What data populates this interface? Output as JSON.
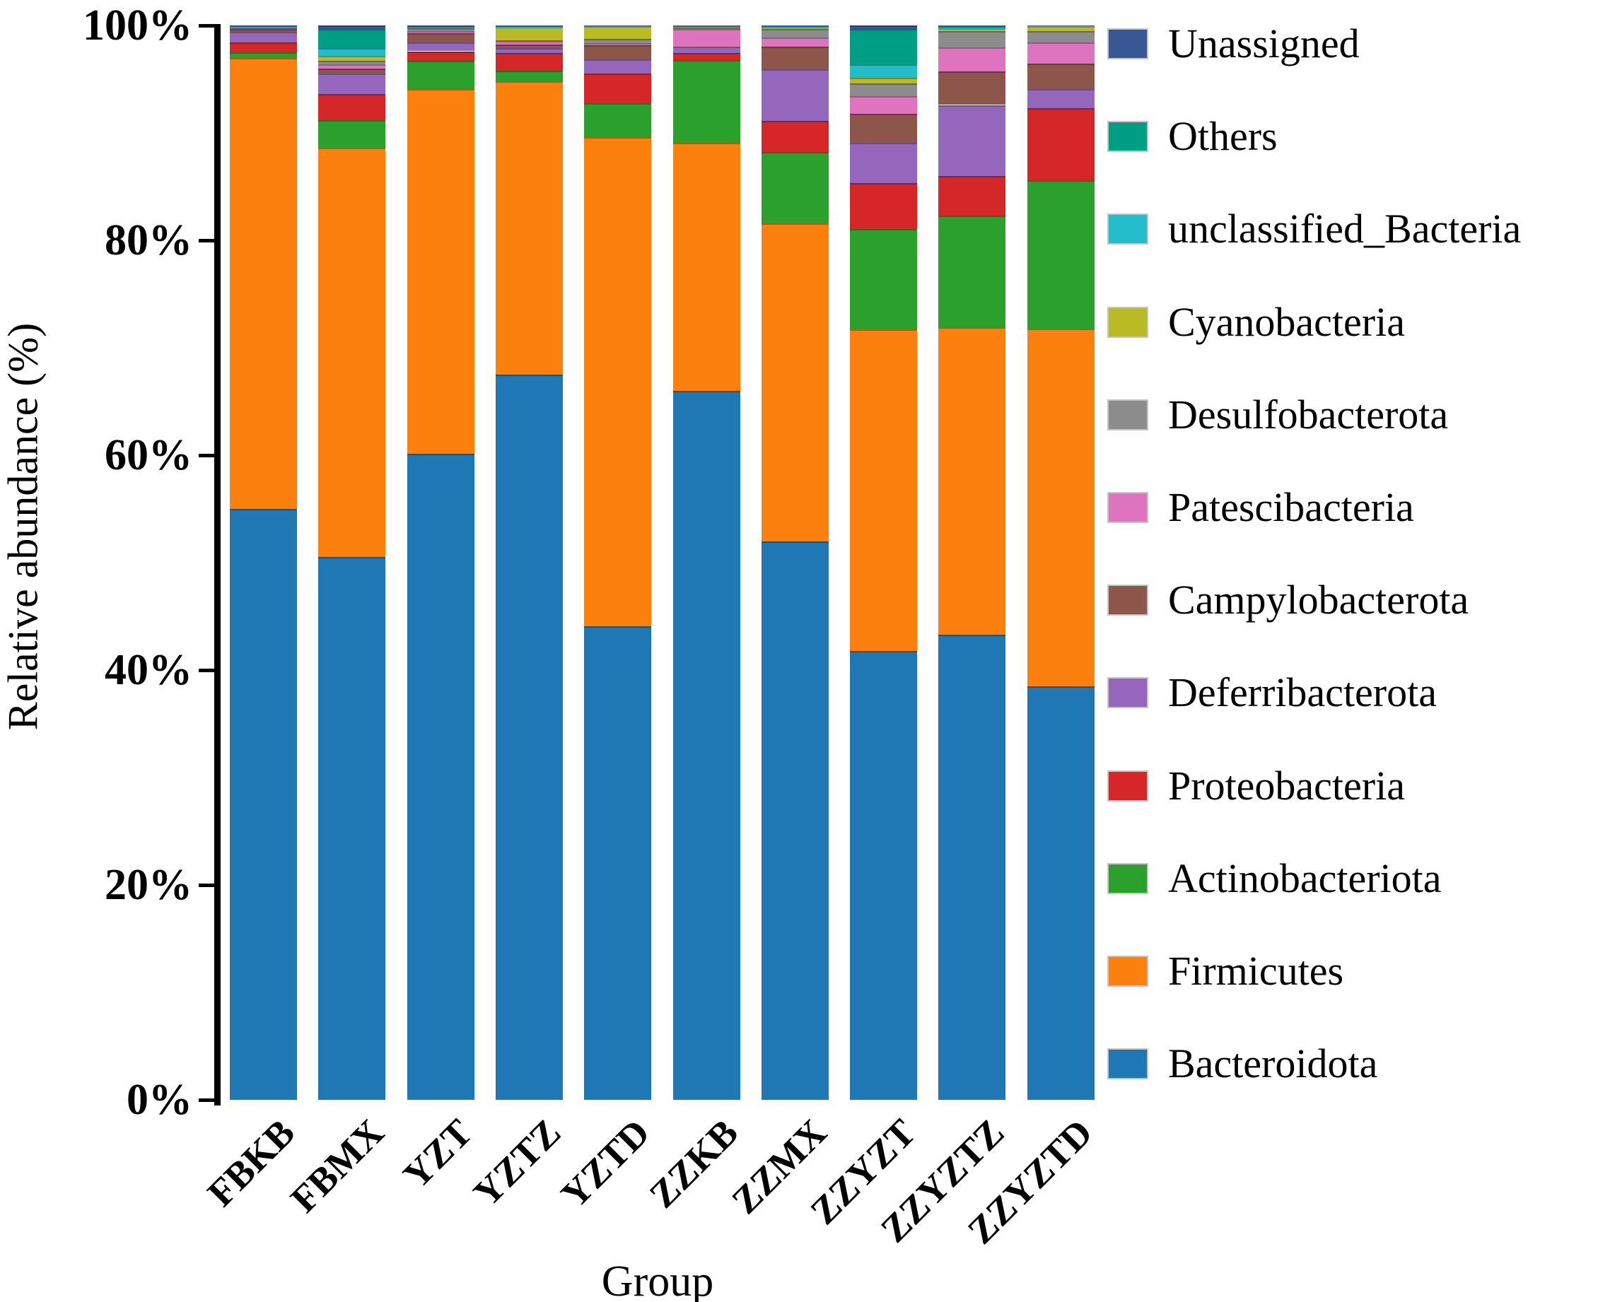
{
  "figure": {
    "y_axis_title": "Relative abundance (%)",
    "x_axis_title": "Group"
  },
  "chart_data": {
    "type": "bar",
    "stacked": true,
    "orientation": "vertical",
    "xlabel": "Group",
    "ylabel": "Relative abundance (%)",
    "ylim": [
      0,
      100
    ],
    "y_tick_labels": [
      "0%",
      "20%",
      "40%",
      "60%",
      "80%",
      "100%"
    ],
    "y_tick_values": [
      0,
      20,
      40,
      60,
      80,
      100
    ],
    "grid": false,
    "legend_position": "right",
    "legend_order_top_to_bottom": [
      "Unassigned",
      "Others",
      "unclassified_Bacteria",
      "Cyanobacteria",
      "Desulfobacterota",
      "Patescibacteria",
      "Campylobacterota",
      "Deferribacterota",
      "Proteobacteria",
      "Actinobacteriota",
      "Firmicutes",
      "Bacteroidota"
    ],
    "categories": [
      "FBKB",
      "FBMX",
      "YZT",
      "YZTZ",
      "YZTD",
      "ZZKB",
      "ZZMX",
      "ZZYZT",
      "ZZYZTZ",
      "ZZYZTD"
    ],
    "series": [
      {
        "name": "Bacteroidota",
        "color": "#1F77B4",
        "values": [
          55.0,
          50.5,
          60.1,
          67.5,
          44.1,
          66.0,
          52.0,
          41.8,
          43.3,
          38.5
        ]
      },
      {
        "name": "Firmicutes",
        "color": "#FC800E",
        "values": [
          42.0,
          38.1,
          34.0,
          27.3,
          45.5,
          23.1,
          29.6,
          29.9,
          28.6,
          33.3
        ]
      },
      {
        "name": "Actinobacteriota",
        "color": "#2CA02C",
        "values": [
          0.5,
          2.6,
          2.6,
          1.0,
          3.15,
          7.7,
          6.6,
          9.35,
          10.4,
          13.8
        ]
      },
      {
        "name": "Proteobacteria",
        "color": "#D62728",
        "values": [
          0.9,
          2.4,
          0.9,
          1.65,
          2.8,
          0.65,
          2.9,
          4.3,
          3.7,
          6.7
        ]
      },
      {
        "name": "Deferribacterota",
        "color": "#9467BD",
        "values": [
          1.0,
          1.9,
          0.8,
          0.45,
          1.3,
          0.55,
          4.85,
          3.75,
          6.6,
          1.75
        ]
      },
      {
        "name": "Campylobacterota",
        "color": "#8C564B",
        "values": [
          0.3,
          0.5,
          0.9,
          0.35,
          1.3,
          0.05,
          2.05,
          2.65,
          3.1,
          2.4
        ]
      },
      {
        "name": "Patescibacteria",
        "color": "#DE74C0",
        "values": [
          0.05,
          0.4,
          0.2,
          0.3,
          0.2,
          1.65,
          0.9,
          1.7,
          2.25,
          2.0
        ]
      },
      {
        "name": "Desulfobacterota",
        "color": "#8C8C8C",
        "values": [
          0.05,
          0.3,
          0.25,
          0.1,
          0.4,
          0.05,
          0.75,
          1.15,
          1.5,
          1.05
        ]
      },
      {
        "name": "Cyanobacteria",
        "color": "#B9BA24",
        "values": [
          0.08,
          0.5,
          0.05,
          1.2,
          1.2,
          0.15,
          0.2,
          0.55,
          0.3,
          0.45
        ]
      },
      {
        "name": "unclassified_Bacteria",
        "color": "#23BCCB",
        "values": [
          0.02,
          0.7,
          0.05,
          0.05,
          0.02,
          0.02,
          0.03,
          1.25,
          0.02,
          0.01
        ]
      },
      {
        "name": "Others",
        "color": "#009E85",
        "values": [
          0.05,
          1.8,
          0.1,
          0.08,
          0.02,
          0.06,
          0.1,
          3.25,
          0.2,
          0.02
        ]
      },
      {
        "name": "Unassigned",
        "color": "#3A5795",
        "values": [
          0.05,
          0.3,
          0.05,
          0.02,
          0.01,
          0.02,
          0.02,
          0.35,
          0.03,
          0.02
        ]
      }
    ]
  }
}
